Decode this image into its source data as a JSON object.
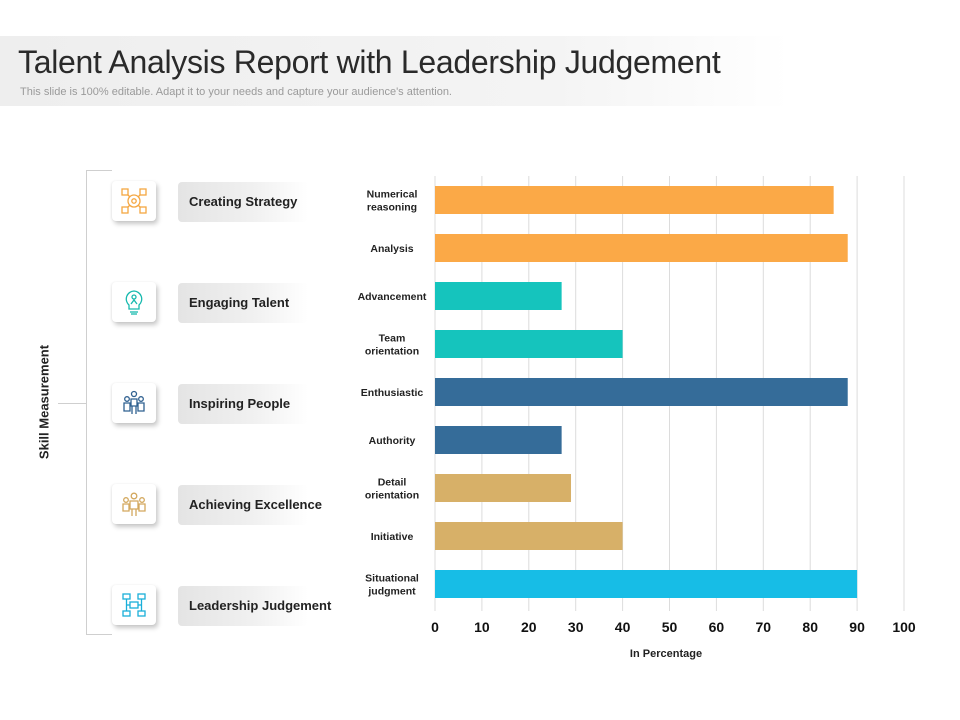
{
  "header": {
    "title": "Talent Analysis Report with Leadership Judgement",
    "subtitle": "This slide is 100% editable. Adapt it to your needs and capture your audience's attention."
  },
  "left_panel": {
    "axis_title": "Skill Measurement",
    "skills": [
      {
        "label": "Creating Strategy",
        "icon": "strategy-icon",
        "color": "#F5A742"
      },
      {
        "label": "Engaging Talent",
        "icon": "lightbulb-person-icon",
        "color": "#17B9AE"
      },
      {
        "label": "Inspiring People",
        "icon": "people-group-icon",
        "color": "#2F6090"
      },
      {
        "label": "Achieving Excellence",
        "icon": "team-icon",
        "color": "#D3A85E"
      },
      {
        "label": "Leadership Judgement",
        "icon": "flowchart-icon",
        "color": "#1AAFD9"
      }
    ]
  },
  "chart_data": {
    "type": "bar",
    "orientation": "horizontal",
    "categories": [
      "Numerical reasoning",
      "Analysis",
      "Advancement",
      "Team orientation",
      "Enthusiastic",
      "Authority",
      "Detail orientation",
      "Initiative",
      "Situational judgment"
    ],
    "category_lines": [
      [
        "Numerical",
        "reasoning"
      ],
      [
        "Analysis"
      ],
      [
        "Advancement"
      ],
      [
        "Team",
        "orientation"
      ],
      [
        "Enthusiastic"
      ],
      [
        "Authority"
      ],
      [
        "Detail",
        "orientation"
      ],
      [
        "Initiative"
      ],
      [
        "Situational",
        "judgment"
      ]
    ],
    "values": [
      85,
      88,
      27,
      40,
      88,
      27,
      29,
      40,
      90
    ],
    "colors": [
      "#FBA947",
      "#FBA947",
      "#15C4BD",
      "#15C4BD",
      "#356C99",
      "#356C99",
      "#D7B068",
      "#D7B068",
      "#17BDE6"
    ],
    "xlabel": "In Percentage",
    "ylabel": "",
    "xlim": [
      0,
      100
    ],
    "xticks": [
      0,
      10,
      20,
      30,
      40,
      50,
      60,
      70,
      80,
      90,
      100
    ],
    "grid": true
  }
}
